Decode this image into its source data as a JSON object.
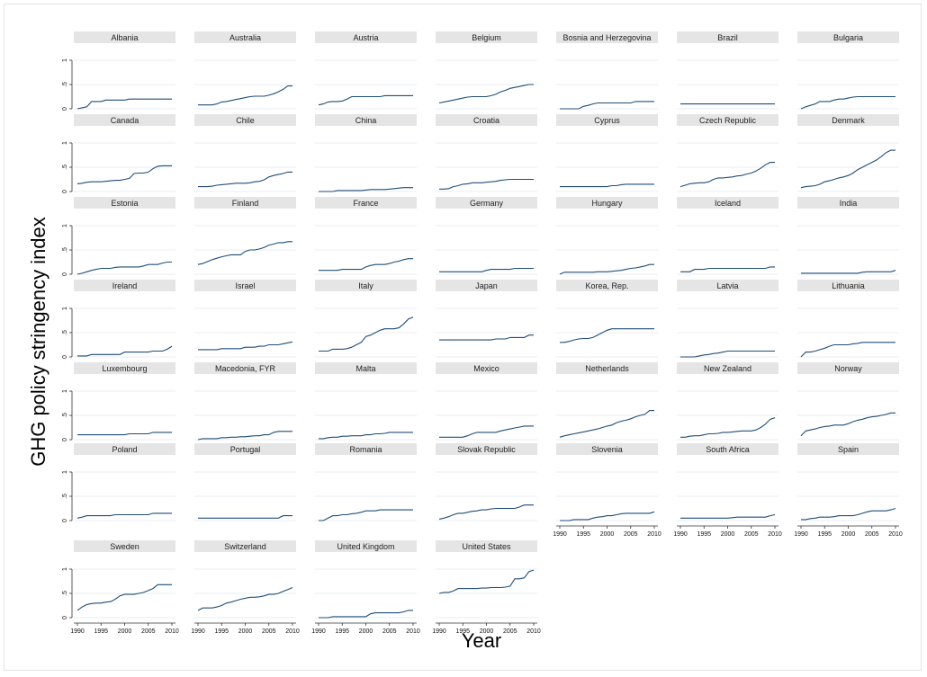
{
  "chart_data": {
    "type": "line",
    "title": "",
    "xlabel": "Year",
    "ylabel": "GHG policy stringency index",
    "xlim": [
      1990,
      2010
    ],
    "ylim": [
      0,
      1
    ],
    "x_ticks": [
      1990,
      1995,
      2000,
      2005,
      2010
    ],
    "y_ticks": [
      0,
      0.5,
      1
    ],
    "y_tick_labels": [
      "0",
      ".5",
      "1"
    ],
    "grid": "horizontal",
    "line_color": "#1f4e79",
    "panel_header_color": "#e5e5e5",
    "x": [
      1990,
      1991,
      1992,
      1993,
      1994,
      1995,
      1996,
      1997,
      1998,
      1999,
      2000,
      2001,
      2002,
      2003,
      2004,
      2005,
      2006,
      2007,
      2008,
      2009,
      2010
    ],
    "panels": [
      {
        "name": "Albania",
        "values": [
          0.0,
          0.02,
          0.04,
          0.15,
          0.15,
          0.15,
          0.18,
          0.18,
          0.18,
          0.18,
          0.18,
          0.2,
          0.2,
          0.2,
          0.2,
          0.2,
          0.2,
          0.2,
          0.2,
          0.2,
          0.2
        ]
      },
      {
        "name": "Australia",
        "values": [
          0.08,
          0.08,
          0.08,
          0.08,
          0.1,
          0.14,
          0.15,
          0.17,
          0.19,
          0.21,
          0.23,
          0.25,
          0.26,
          0.26,
          0.26,
          0.28,
          0.31,
          0.35,
          0.4,
          0.47,
          0.47
        ]
      },
      {
        "name": "Austria",
        "values": [
          0.08,
          0.1,
          0.14,
          0.15,
          0.15,
          0.16,
          0.2,
          0.25,
          0.25,
          0.25,
          0.25,
          0.25,
          0.25,
          0.25,
          0.27,
          0.27,
          0.27,
          0.27,
          0.27,
          0.27,
          0.27
        ]
      },
      {
        "name": "Belgium",
        "values": [
          0.12,
          0.14,
          0.16,
          0.18,
          0.2,
          0.22,
          0.24,
          0.25,
          0.25,
          0.25,
          0.25,
          0.27,
          0.3,
          0.35,
          0.38,
          0.42,
          0.44,
          0.46,
          0.48,
          0.5,
          0.5
        ]
      },
      {
        "name": "Bosnia and Herzegovina",
        "values": [
          0.0,
          0.0,
          0.0,
          0.0,
          0.0,
          0.05,
          0.07,
          0.1,
          0.12,
          0.12,
          0.12,
          0.12,
          0.12,
          0.12,
          0.12,
          0.12,
          0.15,
          0.15,
          0.15,
          0.15,
          0.15
        ]
      },
      {
        "name": "Brazil",
        "values": [
          0.1,
          0.1,
          0.1,
          0.1,
          0.1,
          0.1,
          0.1,
          0.1,
          0.1,
          0.1,
          0.1,
          0.1,
          0.1,
          0.1,
          0.1,
          0.1,
          0.1,
          0.1,
          0.1,
          0.1,
          0.1
        ]
      },
      {
        "name": "Bulgaria",
        "values": [
          0.0,
          0.04,
          0.07,
          0.1,
          0.15,
          0.15,
          0.15,
          0.18,
          0.2,
          0.2,
          0.22,
          0.24,
          0.25,
          0.25,
          0.25,
          0.25,
          0.25,
          0.25,
          0.25,
          0.25,
          0.25
        ]
      },
      {
        "name": "Canada",
        "values": [
          0.16,
          0.17,
          0.19,
          0.2,
          0.2,
          0.2,
          0.21,
          0.22,
          0.23,
          0.23,
          0.25,
          0.27,
          0.37,
          0.38,
          0.38,
          0.4,
          0.47,
          0.52,
          0.53,
          0.53,
          0.53
        ]
      },
      {
        "name": "Chile",
        "values": [
          0.1,
          0.1,
          0.1,
          0.11,
          0.13,
          0.14,
          0.15,
          0.16,
          0.17,
          0.17,
          0.17,
          0.18,
          0.2,
          0.21,
          0.24,
          0.3,
          0.33,
          0.35,
          0.37,
          0.4,
          0.4
        ]
      },
      {
        "name": "China",
        "values": [
          0.0,
          0.0,
          0.0,
          0.0,
          0.02,
          0.02,
          0.02,
          0.02,
          0.02,
          0.02,
          0.03,
          0.04,
          0.04,
          0.04,
          0.04,
          0.05,
          0.06,
          0.07,
          0.08,
          0.08,
          0.08
        ]
      },
      {
        "name": "Croatia",
        "values": [
          0.05,
          0.05,
          0.06,
          0.1,
          0.12,
          0.15,
          0.16,
          0.18,
          0.18,
          0.18,
          0.19,
          0.2,
          0.21,
          0.23,
          0.24,
          0.25,
          0.25,
          0.25,
          0.25,
          0.25,
          0.25
        ]
      },
      {
        "name": "Cyprus",
        "values": [
          0.1,
          0.1,
          0.1,
          0.1,
          0.1,
          0.1,
          0.1,
          0.1,
          0.1,
          0.1,
          0.1,
          0.12,
          0.12,
          0.14,
          0.15,
          0.15,
          0.15,
          0.15,
          0.15,
          0.15,
          0.15
        ]
      },
      {
        "name": "Czech Republic",
        "values": [
          0.1,
          0.13,
          0.16,
          0.17,
          0.18,
          0.18,
          0.2,
          0.25,
          0.28,
          0.28,
          0.29,
          0.3,
          0.32,
          0.33,
          0.36,
          0.38,
          0.42,
          0.48,
          0.55,
          0.6,
          0.6
        ]
      },
      {
        "name": "Denmark",
        "values": [
          0.08,
          0.1,
          0.11,
          0.12,
          0.15,
          0.2,
          0.22,
          0.25,
          0.28,
          0.3,
          0.33,
          0.38,
          0.45,
          0.5,
          0.55,
          0.6,
          0.65,
          0.72,
          0.8,
          0.85,
          0.85
        ]
      },
      {
        "name": "Estonia",
        "values": [
          0.0,
          0.02,
          0.05,
          0.08,
          0.1,
          0.12,
          0.12,
          0.12,
          0.14,
          0.15,
          0.15,
          0.15,
          0.15,
          0.15,
          0.17,
          0.2,
          0.2,
          0.2,
          0.23,
          0.25,
          0.25
        ]
      },
      {
        "name": "Finland",
        "values": [
          0.2,
          0.22,
          0.26,
          0.3,
          0.33,
          0.36,
          0.38,
          0.4,
          0.4,
          0.4,
          0.47,
          0.5,
          0.5,
          0.52,
          0.55,
          0.6,
          0.62,
          0.65,
          0.65,
          0.67,
          0.67
        ]
      },
      {
        "name": "France",
        "values": [
          0.08,
          0.08,
          0.08,
          0.08,
          0.08,
          0.1,
          0.1,
          0.1,
          0.1,
          0.1,
          0.15,
          0.18,
          0.2,
          0.2,
          0.2,
          0.22,
          0.25,
          0.27,
          0.3,
          0.32,
          0.32
        ]
      },
      {
        "name": "Germany",
        "values": [
          0.05,
          0.05,
          0.05,
          0.05,
          0.05,
          0.05,
          0.05,
          0.05,
          0.05,
          0.05,
          0.08,
          0.1,
          0.1,
          0.1,
          0.1,
          0.1,
          0.12,
          0.12,
          0.12,
          0.12,
          0.12
        ]
      },
      {
        "name": "Hungary",
        "values": [
          0.0,
          0.04,
          0.04,
          0.04,
          0.04,
          0.04,
          0.04,
          0.04,
          0.05,
          0.05,
          0.05,
          0.06,
          0.07,
          0.08,
          0.1,
          0.12,
          0.13,
          0.15,
          0.17,
          0.2,
          0.2
        ]
      },
      {
        "name": "Iceland",
        "values": [
          0.05,
          0.05,
          0.05,
          0.1,
          0.1,
          0.1,
          0.12,
          0.12,
          0.12,
          0.12,
          0.12,
          0.12,
          0.12,
          0.12,
          0.12,
          0.12,
          0.12,
          0.12,
          0.12,
          0.15,
          0.15
        ]
      },
      {
        "name": "India",
        "values": [
          0.02,
          0.02,
          0.02,
          0.02,
          0.02,
          0.02,
          0.02,
          0.02,
          0.02,
          0.02,
          0.02,
          0.02,
          0.02,
          0.04,
          0.05,
          0.05,
          0.05,
          0.05,
          0.05,
          0.05,
          0.08
        ]
      },
      {
        "name": "Ireland",
        "values": [
          0.02,
          0.02,
          0.02,
          0.05,
          0.05,
          0.05,
          0.05,
          0.05,
          0.05,
          0.05,
          0.1,
          0.1,
          0.1,
          0.1,
          0.1,
          0.1,
          0.12,
          0.12,
          0.12,
          0.16,
          0.22
        ]
      },
      {
        "name": "Israel",
        "values": [
          0.15,
          0.15,
          0.15,
          0.15,
          0.15,
          0.17,
          0.17,
          0.17,
          0.17,
          0.17,
          0.2,
          0.2,
          0.2,
          0.22,
          0.22,
          0.25,
          0.25,
          0.25,
          0.27,
          0.29,
          0.31
        ]
      },
      {
        "name": "Italy",
        "values": [
          0.12,
          0.12,
          0.12,
          0.16,
          0.16,
          0.16,
          0.17,
          0.2,
          0.25,
          0.3,
          0.42,
          0.45,
          0.5,
          0.55,
          0.58,
          0.58,
          0.58,
          0.6,
          0.68,
          0.78,
          0.82
        ]
      },
      {
        "name": "Japan",
        "values": [
          0.35,
          0.35,
          0.35,
          0.35,
          0.35,
          0.35,
          0.35,
          0.35,
          0.35,
          0.35,
          0.35,
          0.35,
          0.37,
          0.37,
          0.37,
          0.4,
          0.4,
          0.4,
          0.4,
          0.45,
          0.45
        ]
      },
      {
        "name": "Korea, Rep.",
        "values": [
          0.3,
          0.3,
          0.32,
          0.35,
          0.37,
          0.38,
          0.38,
          0.4,
          0.45,
          0.5,
          0.55,
          0.58,
          0.58,
          0.58,
          0.58,
          0.58,
          0.58,
          0.58,
          0.58,
          0.58,
          0.58
        ]
      },
      {
        "name": "Latvia",
        "values": [
          0.0,
          0.0,
          0.0,
          0.0,
          0.02,
          0.04,
          0.05,
          0.07,
          0.08,
          0.1,
          0.12,
          0.12,
          0.12,
          0.12,
          0.12,
          0.12,
          0.12,
          0.12,
          0.12,
          0.12,
          0.12
        ]
      },
      {
        "name": "Lithuania",
        "values": [
          0.0,
          0.1,
          0.1,
          0.12,
          0.15,
          0.18,
          0.22,
          0.25,
          0.25,
          0.25,
          0.25,
          0.27,
          0.28,
          0.3,
          0.3,
          0.3,
          0.3,
          0.3,
          0.3,
          0.3,
          0.3
        ]
      },
      {
        "name": "Luxembourg",
        "values": [
          0.1,
          0.1,
          0.1,
          0.1,
          0.1,
          0.1,
          0.1,
          0.1,
          0.1,
          0.1,
          0.1,
          0.12,
          0.12,
          0.12,
          0.12,
          0.12,
          0.15,
          0.15,
          0.15,
          0.15,
          0.15
        ]
      },
      {
        "name": "Macedonia, FYR",
        "values": [
          0.0,
          0.02,
          0.02,
          0.02,
          0.02,
          0.04,
          0.04,
          0.05,
          0.05,
          0.06,
          0.06,
          0.07,
          0.08,
          0.08,
          0.1,
          0.1,
          0.15,
          0.17,
          0.17,
          0.17,
          0.17
        ]
      },
      {
        "name": "Malta",
        "values": [
          0.02,
          0.02,
          0.04,
          0.05,
          0.05,
          0.07,
          0.07,
          0.08,
          0.08,
          0.08,
          0.1,
          0.1,
          0.12,
          0.12,
          0.13,
          0.15,
          0.15,
          0.15,
          0.15,
          0.15,
          0.15
        ]
      },
      {
        "name": "Mexico",
        "values": [
          0.05,
          0.05,
          0.05,
          0.05,
          0.05,
          0.05,
          0.08,
          0.12,
          0.15,
          0.15,
          0.15,
          0.15,
          0.15,
          0.18,
          0.2,
          0.22,
          0.24,
          0.26,
          0.28,
          0.28,
          0.28
        ]
      },
      {
        "name": "Netherlands",
        "values": [
          0.05,
          0.08,
          0.1,
          0.12,
          0.14,
          0.16,
          0.18,
          0.2,
          0.22,
          0.25,
          0.28,
          0.3,
          0.35,
          0.38,
          0.4,
          0.43,
          0.47,
          0.5,
          0.52,
          0.6,
          0.6
        ]
      },
      {
        "name": "New Zealand",
        "values": [
          0.05,
          0.05,
          0.07,
          0.08,
          0.08,
          0.1,
          0.12,
          0.12,
          0.13,
          0.15,
          0.15,
          0.16,
          0.17,
          0.18,
          0.18,
          0.18,
          0.2,
          0.25,
          0.32,
          0.42,
          0.45
        ]
      },
      {
        "name": "Norway",
        "values": [
          0.08,
          0.18,
          0.2,
          0.22,
          0.25,
          0.27,
          0.28,
          0.3,
          0.3,
          0.3,
          0.33,
          0.37,
          0.4,
          0.42,
          0.45,
          0.47,
          0.48,
          0.5,
          0.52,
          0.55,
          0.55
        ]
      },
      {
        "name": "Poland",
        "values": [
          0.05,
          0.07,
          0.1,
          0.1,
          0.1,
          0.1,
          0.1,
          0.1,
          0.12,
          0.12,
          0.12,
          0.12,
          0.12,
          0.12,
          0.12,
          0.12,
          0.15,
          0.15,
          0.15,
          0.15,
          0.15
        ]
      },
      {
        "name": "Portugal",
        "values": [
          0.05,
          0.05,
          0.05,
          0.05,
          0.05,
          0.05,
          0.05,
          0.05,
          0.05,
          0.05,
          0.05,
          0.05,
          0.05,
          0.05,
          0.05,
          0.05,
          0.05,
          0.05,
          0.1,
          0.1,
          0.1
        ]
      },
      {
        "name": "Romania",
        "values": [
          0.0,
          0.0,
          0.05,
          0.1,
          0.1,
          0.12,
          0.12,
          0.14,
          0.15,
          0.17,
          0.2,
          0.2,
          0.2,
          0.22,
          0.22,
          0.22,
          0.22,
          0.22,
          0.22,
          0.22,
          0.22
        ]
      },
      {
        "name": "Slovak Republic",
        "values": [
          0.03,
          0.05,
          0.08,
          0.12,
          0.15,
          0.15,
          0.17,
          0.19,
          0.2,
          0.22,
          0.22,
          0.24,
          0.25,
          0.25,
          0.25,
          0.25,
          0.25,
          0.28,
          0.32,
          0.32,
          0.32
        ]
      },
      {
        "name": "Slovenia",
        "values": [
          0.0,
          0.0,
          0.0,
          0.02,
          0.02,
          0.02,
          0.02,
          0.05,
          0.07,
          0.08,
          0.1,
          0.1,
          0.12,
          0.14,
          0.15,
          0.15,
          0.15,
          0.15,
          0.15,
          0.15,
          0.18
        ]
      },
      {
        "name": "South Africa",
        "values": [
          0.05,
          0.05,
          0.05,
          0.05,
          0.05,
          0.05,
          0.05,
          0.05,
          0.05,
          0.05,
          0.05,
          0.06,
          0.07,
          0.07,
          0.07,
          0.07,
          0.07,
          0.07,
          0.07,
          0.1,
          0.12
        ]
      },
      {
        "name": "Spain",
        "values": [
          0.02,
          0.02,
          0.04,
          0.05,
          0.07,
          0.07,
          0.07,
          0.08,
          0.1,
          0.1,
          0.1,
          0.1,
          0.12,
          0.15,
          0.18,
          0.2,
          0.2,
          0.2,
          0.2,
          0.22,
          0.25
        ]
      },
      {
        "name": "Sweden",
        "values": [
          0.15,
          0.22,
          0.27,
          0.29,
          0.3,
          0.3,
          0.32,
          0.33,
          0.38,
          0.45,
          0.48,
          0.48,
          0.48,
          0.5,
          0.52,
          0.56,
          0.6,
          0.68,
          0.68,
          0.68,
          0.68
        ]
      },
      {
        "name": "Switzerland",
        "values": [
          0.15,
          0.2,
          0.2,
          0.2,
          0.22,
          0.25,
          0.3,
          0.32,
          0.35,
          0.38,
          0.4,
          0.42,
          0.42,
          0.43,
          0.45,
          0.48,
          0.48,
          0.5,
          0.54,
          0.58,
          0.62
        ]
      },
      {
        "name": "United Kingdom",
        "values": [
          0.0,
          0.0,
          0.0,
          0.02,
          0.02,
          0.02,
          0.02,
          0.02,
          0.02,
          0.02,
          0.02,
          0.08,
          0.1,
          0.1,
          0.1,
          0.1,
          0.1,
          0.1,
          0.12,
          0.15,
          0.15
        ]
      },
      {
        "name": "United States",
        "values": [
          0.5,
          0.52,
          0.52,
          0.55,
          0.6,
          0.6,
          0.6,
          0.6,
          0.6,
          0.61,
          0.61,
          0.62,
          0.62,
          0.62,
          0.63,
          0.65,
          0.8,
          0.8,
          0.82,
          0.95,
          0.98
        ]
      }
    ]
  }
}
